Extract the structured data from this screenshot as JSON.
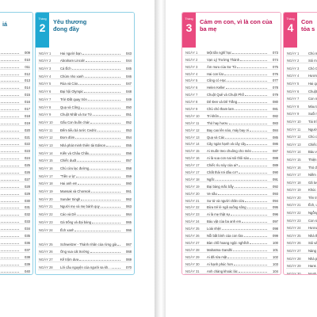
{
  "colors": {
    "blue_tab": "#1fa8d2",
    "pink_tab": "#e94a7f",
    "blue_title": "#1a6f95",
    "pink_title": "#c2185b"
  },
  "col0": {
    "title_cut": "iá",
    "rows": [
      {
        "pg": "009"
      },
      {
        "pg": "010"
      },
      {
        "pg": "011"
      },
      {
        "pg": "012"
      },
      {
        "pg": "013"
      },
      {
        "pg": "014"
      },
      {
        "pg": "015"
      },
      {
        "pg": "016"
      },
      {
        "pg": "017"
      },
      {
        "pg": "018"
      },
      {
        "pg": "019"
      },
      {
        "pg": "020"
      },
      {
        "pg": "021"
      },
      {
        "pg": "022"
      },
      {
        "pg": "023"
      },
      {
        "pg": "024"
      },
      {
        "pg": "025"
      },
      {
        "pg": "026"
      },
      {
        "pg": "027"
      },
      {
        "pg": "028"
      },
      {
        "pg": "029"
      },
      {
        "pg": "030"
      },
      {
        "pg": "031"
      },
      {
        "pg": "032"
      },
      {
        "pg": "033"
      },
      {
        "pg": "034"
      },
      {
        "pg": "035"
      },
      {
        "pg": "036"
      },
      {
        "pg": "037"
      },
      {
        "pg": "038"
      },
      {
        "pg": "039"
      },
      {
        "pg": "040"
      }
    ]
  },
  "col1": {
    "tab_label": "Tháng",
    "tab_num": "2",
    "title": "Yêu thương đong đầy",
    "rows": [
      {
        "day": "NGÀY 1",
        "t": "Hai người bạn",
        "pg": "043"
      },
      {
        "day": "NGÀY 2",
        "t": "Abraham Lincoln",
        "pg": "044"
      },
      {
        "day": "NGÀY 3",
        "t": "Cá Ếch",
        "pg": "045"
      },
      {
        "day": "NGÀY 4",
        "t": "Chùm nho xanh",
        "pg": "046"
      },
      {
        "day": "NGÀY 5",
        "t": "Rùa và Cáo",
        "pg": "047"
      },
      {
        "day": "NGÀY 6",
        "t": "Đại hội Olympic",
        "pg": "048"
      },
      {
        "day": "NGÀY 7",
        "t": "Trời Đất quay tròn",
        "pg": "049"
      },
      {
        "day": "NGÀY 8",
        "t": "Quạ và Công",
        "pg": "050"
      },
      {
        "day": "NGÀY 9",
        "t": "Chuột Nhắt và Sư Tử",
        "pg": "051"
      },
      {
        "day": "NGÀY 10",
        "t": "Gấu Con buồn chán",
        "pg": "052"
      },
      {
        "day": "NGÀY 11",
        "t": "Đếm tiểu bá tước Cedric",
        "pg": "053"
      },
      {
        "day": "NGÀY 12",
        "t": "Đom đóm",
        "pg": "054"
      },
      {
        "day": "NGÀY 13",
        "t": "Nhà phát minh thiên tài Edison",
        "pg": "055"
      },
      {
        "day": "NGÀY 14",
        "t": "Kiến và Châu Chấu",
        "pg": "056"
      },
      {
        "day": "NGÀY 15",
        "t": "Chiếc dudt",
        "pg": "057"
      },
      {
        "day": "NGÀY 16",
        "t": "Chú cừu lạc đường",
        "pg": "058"
      },
      {
        "day": "NGÀY 17",
        "t": "\"Tiền ư lạ\"",
        "pg": "059"
      },
      {
        "day": "NGÀY 18",
        "t": "Hai anh em",
        "pg": "060"
      },
      {
        "day": "NGÀY 19",
        "t": "Mansak và Chonsok",
        "pg": "061"
      },
      {
        "day": "NGÀY 20",
        "t": "Sunder Singh",
        "pg": "062"
      },
      {
        "day": "NGÀY 21",
        "t": "Người mẹ và mẹ bánh quy",
        "pg": "063"
      },
      {
        "day": "NGÀY 22",
        "t": "Cáo và Dê",
        "pg": "064"
      },
      {
        "day": "NGÀY 23",
        "t": "Gà trống và đại bàng",
        "pg": "065"
      },
      {
        "day": "NGÀY 24",
        "t": "Ếch xanh",
        "pg": "066"
      },
      {
        "day": "NGÀY 25",
        "t": "Schweitzer - Thánh nhân của rừng già",
        "pg": "067",
        "two": true
      },
      {
        "day": "NGÀY 26",
        "t": "Ông vua cát trường",
        "pg": "068"
      },
      {
        "day": "NGÀY 27",
        "t": "Kế trộm dưa",
        "pg": "069"
      },
      {
        "day": "NGÀY 28",
        "t": "Lời cầu nguyện của người sa kh...",
        "pg": "070"
      }
    ]
  },
  "col2": {
    "tab_label": "Tháng",
    "tab_num": "3",
    "title": "Cảm ơn con, vì là con của ba mẹ",
    "rows": [
      {
        "day": "NGÀY 1",
        "t": "Một tấn nghĩ học",
        "pg": "073"
      },
      {
        "day": "NGÀY 2",
        "t": "Vạn Lý Trường Thành",
        "pg": "074"
      },
      {
        "day": "NGÀY 3",
        "t": "Âm mưu của Sư Tử",
        "pg": "075"
      },
      {
        "day": "NGÀY 4",
        "t": "Hai con lừa",
        "pg": "076"
      },
      {
        "day": "NGÀY 5",
        "t": "Cũng có Học",
        "pg": "077"
      },
      {
        "day": "NGÀY 6",
        "t": "Helen Keller",
        "pg": "078"
      },
      {
        "day": "NGÀY 7",
        "t": "Chuột Quê và Chuột Phố",
        "pg": "079"
      },
      {
        "day": "NGÀY 8",
        "t": "Dê Đen và Dê Trắng",
        "pg": "080"
      },
      {
        "day": "NGÀY 9",
        "t": "Chú chó tham lam",
        "pg": "081"
      },
      {
        "day": "NGÀY 10",
        "t": "Tri khôn",
        "pg": "082"
      },
      {
        "day": "NGÀY 11",
        "t": "Thỏ hay hươu",
        "pg": "083"
      },
      {
        "day": "NGÀY 12",
        "t": "Bay cao lên nào, máy bay ơi",
        "pg": "084"
      },
      {
        "day": "NGÀY 13",
        "t": "Quạ và Cáo",
        "pg": "085"
      },
      {
        "day": "NGÀY 14",
        "t": "Cây ngàn hạnh và cây cây",
        "pg": "086"
      },
      {
        "day": "NGÀY 15",
        "t": "Ai muốn treo chuông cho mèo",
        "pg": "087"
      },
      {
        "day": "NGÀY 16",
        "t": "Ai là vua con nai sói thôi sào",
        "pg": "088"
      },
      {
        "day": "NGÀY 17",
        "t": "Chiếc rìu này của ai?",
        "pg": "089"
      },
      {
        "day": "NGÀY 17",
        "t": "Chất thải rơi đâu cơ?",
        "pg": "090"
      },
      {
        "day": "NGÀY 18",
        "t": "Ngốc",
        "pg": "091"
      },
      {
        "day": "NGÀY 19",
        "t": "Đại bàng mắc bẫy",
        "pg": "092"
      },
      {
        "day": "NGÀY 20",
        "t": "Ve sầu",
        "pg": "093"
      },
      {
        "day": "NGÀY 21",
        "t": "Sư tử và người chăn cừu",
        "pg": "094"
      },
      {
        "day": "NGÀY 22",
        "t": "Đừa trẻ lè ngã xuống sông",
        "pg": "095"
      },
      {
        "day": "NGÀY 23",
        "t": "Ai là mẹ thật sự",
        "pg": "096"
      },
      {
        "day": "NGÀY 24",
        "t": "Báu vật của ba anh em",
        "pg": "097"
      },
      {
        "day": "NGÀY 25",
        "t": "Loài nhện",
        "pg": "098"
      },
      {
        "day": "NGÀY 26",
        "t": "Nỗi bất bình của con lừa",
        "pg": "099"
      },
      {
        "day": "NGÀY 27",
        "t": "Bàn chồ hoang ngộc nghếch",
        "pg": "100"
      },
      {
        "day": "NGÀY 28",
        "t": "Mahatma Gandhi",
        "pg": "101"
      },
      {
        "day": "NGÀY 29",
        "t": "Ai đã rửa mặt",
        "pg": "102"
      },
      {
        "day": "NGÀY 30",
        "t": "Ai hạnh phúc hơn",
        "pg": "103"
      },
      {
        "day": "NGÀY 31",
        "t": "Anh chàng khoác lác",
        "pg": "104"
      }
    ]
  },
  "col3": {
    "tab_label": "Tháng",
    "tab_num": "4",
    "title": "Con tỏa s",
    "rows": [
      {
        "day": "NGÀY 1",
        "t": "Chú m"
      },
      {
        "day": "NGÀY 2",
        "t": "Sói mư"
      },
      {
        "day": "NGÀY 3",
        "t": "Chó Ch"
      },
      {
        "day": "NGÀY 4",
        "t": "Hương"
      },
      {
        "day": "NGÀY 5",
        "t": "Hai qu"
      },
      {
        "day": "NGÀY 6",
        "t": "Chuột"
      },
      {
        "day": "NGÀY 7",
        "t": "Con nu"
      },
      {
        "day": "NGÀY 8",
        "t": "Màu tr"
      },
      {
        "day": "NGÀY 9",
        "t": "Suối n"
      },
      {
        "day": "NGÀY 10",
        "t": "Tài trí"
      },
      {
        "day": "NGÀY 11",
        "t": "Người"
      },
      {
        "day": "NGÀY 12",
        "t": "Chú ch"
      },
      {
        "day": "NGÀY 13",
        "t": "Chiếc"
      },
      {
        "day": "NGÀY 14",
        "t": "Báu ve"
      },
      {
        "day": "NGÀY 15",
        "t": "Thiện c"
      },
      {
        "day": "NGÀY 16",
        "t": "Thỏ đi"
      },
      {
        "day": "NGÀY 17",
        "t": "Niềm n"
      },
      {
        "day": "NGÀY 18",
        "t": "Gã lười"
      },
      {
        "day": "NGÀY 19",
        "t": "Khúc g"
      },
      {
        "day": "NGÀY 20",
        "t": "Tên tr"
      },
      {
        "day": "NGÀY 21",
        "t": "Ếch, ư"
      },
      {
        "day": "NGÀY 22",
        "t": "Ngỗng"
      },
      {
        "day": "NGÀY 23",
        "t": "Con sô"
      },
      {
        "day": "NGÀY 24",
        "t": "Hươu c"
      },
      {
        "day": "NGÀY 25",
        "t": "Nhà th"
      },
      {
        "day": "NGÀY 26",
        "t": "Sói và"
      },
      {
        "day": "NGÀY 27",
        "t": "Nàng t"
      },
      {
        "day": "NGÀY 28",
        "t": "Nhà ph"
      },
      {
        "day": "NGÀY 29",
        "t": "Hans v"
      },
      {
        "day": "NGÀY 30",
        "t": "Noah..."
      }
    ]
  }
}
